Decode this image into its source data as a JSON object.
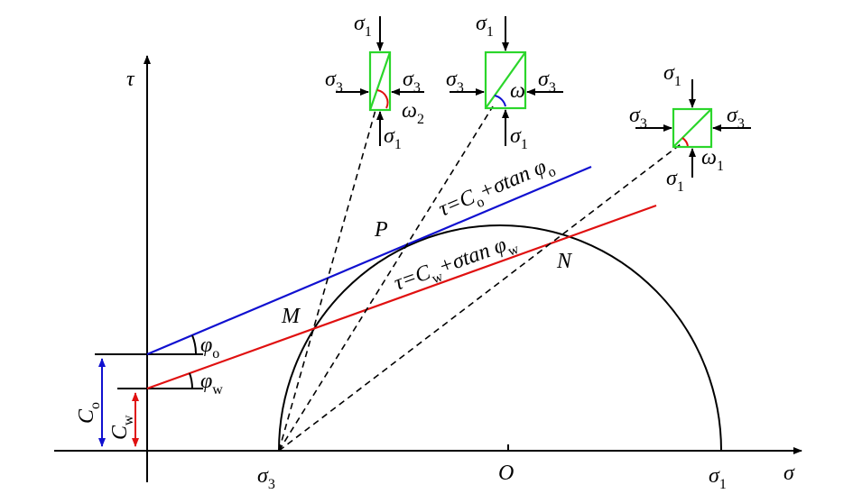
{
  "labels": [
    {
      "symbol": "τ"
    },
    {
      "symbol": "σ"
    },
    {
      "symbol": "σ",
      "sub": "3"
    },
    {
      "symbol": "O"
    },
    {
      "symbol": "σ",
      "sub": "1"
    },
    {
      "symbol": "C",
      "sub": "o"
    },
    {
      "symbol": "C",
      "sub": "w"
    },
    {
      "symbol": "φ",
      "sub": "o"
    },
    {
      "symbol": "φ",
      "sub": "w"
    },
    {
      "symbol": "M"
    },
    {
      "symbol": "P"
    },
    {
      "symbol": "N"
    },
    {
      "symbol": "σ",
      "sub": "1"
    },
    {
      "symbol": "σ",
      "sub": "3"
    },
    {
      "symbol": "σ",
      "sub": "3"
    },
    {
      "symbol": "ω",
      "sub": "2"
    },
    {
      "symbol": "σ",
      "sub": "1"
    },
    {
      "symbol": "σ",
      "sub": "1"
    },
    {
      "symbol": "σ",
      "sub": "3"
    },
    {
      "symbol": "σ",
      "sub": "3"
    },
    {
      "symbol": "ω"
    },
    {
      "symbol": "σ",
      "sub": "1"
    },
    {
      "symbol": "σ",
      "sub": "1"
    },
    {
      "symbol": "σ",
      "sub": "3"
    },
    {
      "symbol": "σ",
      "sub": "3"
    },
    {
      "symbol": "ω",
      "sub": "1"
    },
    {
      "symbol": "σ",
      "sub": "1"
    }
  ],
  "equations": [
    {
      "parts": [
        {
          "text": "τ=C"
        },
        {
          "sub": "o"
        },
        {
          "text": "+σtan φ"
        },
        {
          "sub": "o"
        }
      ]
    },
    {
      "parts": [
        {
          "text": "τ=C"
        },
        {
          "sub": "w"
        },
        {
          "text": "+σtan φ"
        },
        {
          "sub": "w"
        }
      ]
    }
  ]
}
